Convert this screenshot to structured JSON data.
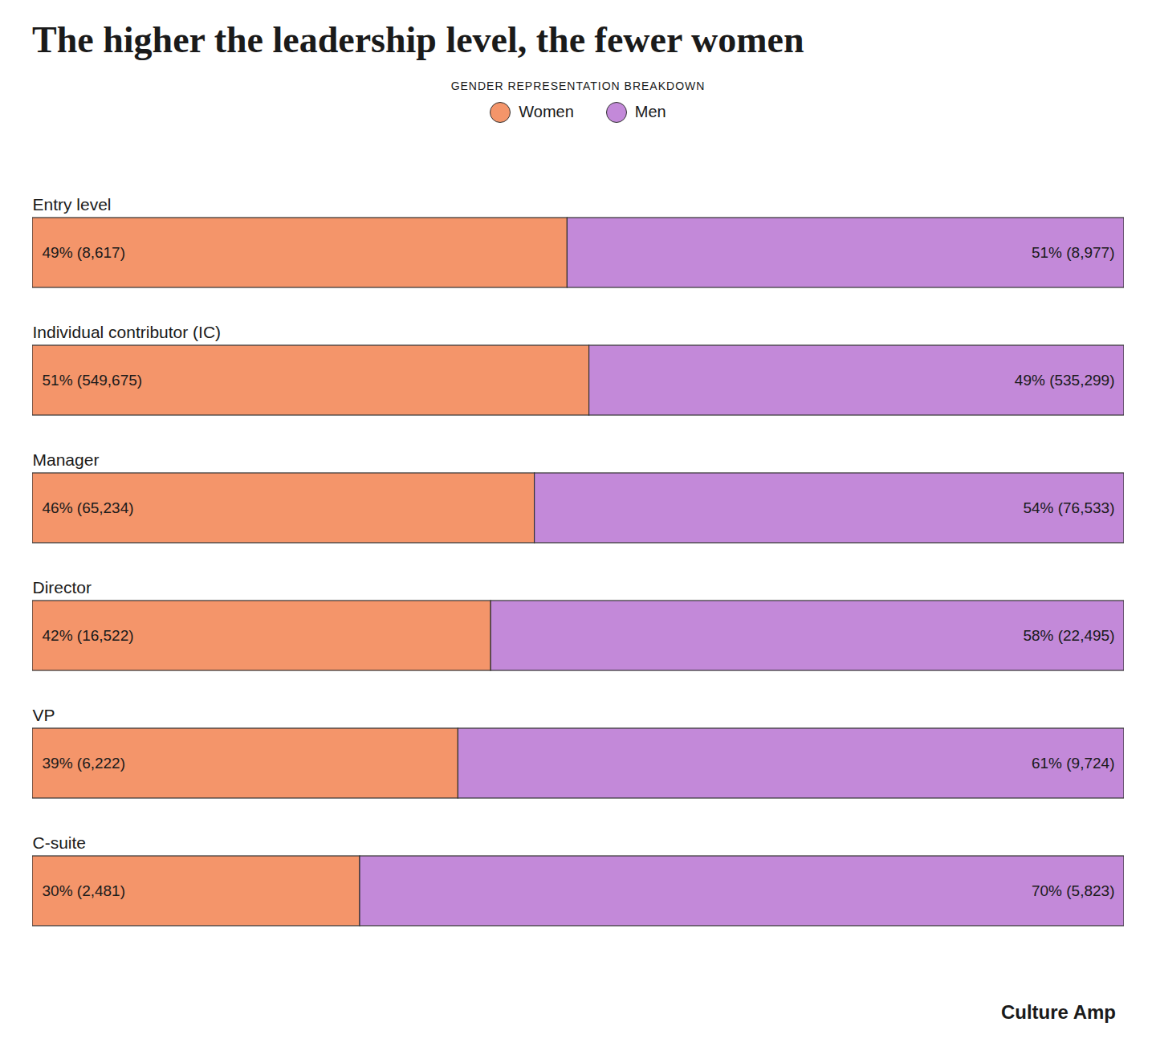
{
  "chart_data": {
    "type": "bar",
    "orientation": "horizontal",
    "stacked": true,
    "title": "The higher the leadership level, the fewer women",
    "subtitle": "GENDER REPRESENTATION BREAKDOWN",
    "categories": [
      "Entry level",
      "Individual contributor (IC)",
      "Manager",
      "Director",
      "VP",
      "C-suite"
    ],
    "series": [
      {
        "name": "Women",
        "color": "#F4956A",
        "values": [
          49,
          51,
          46,
          42,
          39,
          30
        ],
        "value_labels": [
          "49% (8,617)",
          "51% (549,675)",
          "46% (65,234)",
          "42% (16,522)",
          "39% (6,222)",
          "30% (2,481)"
        ]
      },
      {
        "name": "Men",
        "color": "#C389D9",
        "values": [
          51,
          49,
          54,
          58,
          61,
          70
        ],
        "value_labels": [
          "51% (8,977)",
          "49% (535,299)",
          "54% (76,533)",
          "58% (22,495)",
          "61% (9,724)",
          "70% (5,823)"
        ]
      }
    ],
    "xlim": [
      0,
      100
    ],
    "tick_labels": false,
    "grid": false,
    "legend": "top",
    "data_labels": true,
    "annotations": [
      "Culture Amp"
    ]
  }
}
